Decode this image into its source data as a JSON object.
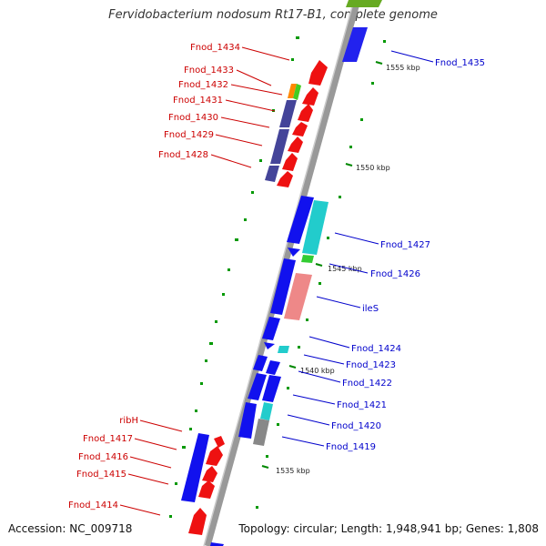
{
  "title": "Fervidobacterium nodosum Rt17-B1, complete genome",
  "footer": {
    "accession": "Accession: NC_009718",
    "summary": "Topology: circular; Length: 1,948,941 bp; Genes: 1,808"
  },
  "colors": {
    "left_label": "#cc0000",
    "right_label": "#0000cc",
    "backbone": "#999999",
    "tick": "#008800"
  },
  "ticks": [
    "1555 kbp",
    "1550 kbp",
    "1545 kbp",
    "1540 kbp",
    "1535 kbp"
  ],
  "left_labels": [
    "Fnod_1434",
    "Fnod_1433",
    "Fnod_1432",
    "Fnod_1431",
    "Fnod_1430",
    "Fnod_1429",
    "Fnod_1428",
    "ribH",
    "Fnod_1417",
    "Fnod_1416",
    "Fnod_1415",
    "Fnod_1414"
  ],
  "right_labels": [
    "Fnod_1435",
    "Fnod_1427",
    "Fnod_1426",
    "ileS",
    "Fnod_1424",
    "Fnod_1423",
    "Fnod_1422",
    "Fnod_1421",
    "Fnod_1420",
    "Fnod_1419"
  ]
}
